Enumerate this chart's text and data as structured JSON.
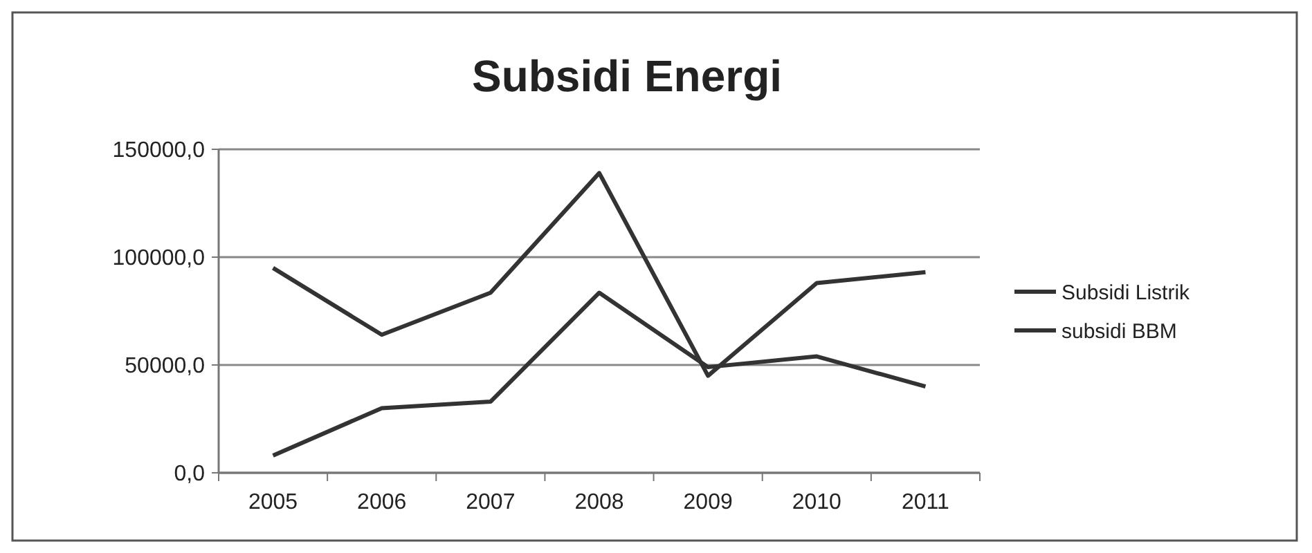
{
  "chart_data": {
    "type": "line",
    "title": "Subsidi Energi",
    "categories": [
      "2005",
      "2006",
      "2007",
      "2008",
      "2009",
      "2010",
      "2011"
    ],
    "series": [
      {
        "name": "Subsidi Listrik",
        "color": "#333333",
        "values": [
          8000,
          30000,
          33000,
          83500,
          49000,
          54000,
          40000
        ]
      },
      {
        "name": "subsidi BBM",
        "color": "#333333",
        "values": [
          95000,
          64000,
          83500,
          139000,
          45000,
          88000,
          93000
        ]
      }
    ],
    "ylim": [
      0,
      150000
    ],
    "yticks": [
      {
        "value": 0,
        "label": "0,0"
      },
      {
        "value": 50000,
        "label": "50000,0"
      },
      {
        "value": 100000,
        "label": "100000,0"
      },
      {
        "value": 150000,
        "label": "150000,0"
      }
    ],
    "grid": "y",
    "legend": "right",
    "marker": "none",
    "line_style": "solid"
  }
}
